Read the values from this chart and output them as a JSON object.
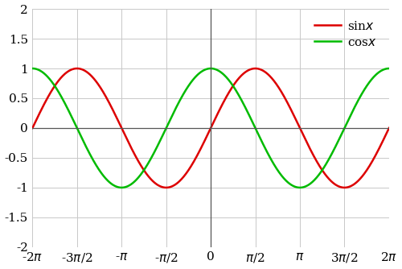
{
  "xlim": [
    -6.283185307179586,
    6.283185307179586
  ],
  "ylim": [
    -2.0,
    2.0
  ],
  "sin_color": "#dd0000",
  "cos_color": "#00bb00",
  "line_width": 1.8,
  "background_color": "#ffffff",
  "grid_color": "#c8c8c8",
  "zero_line_color": "#555555",
  "xtick_positions": [
    -6.283185307179586,
    -4.71238898038469,
    -3.141592653589793,
    -1.5707963267948966,
    0,
    1.5707963267948966,
    3.141592653589793,
    4.71238898038469,
    6.283185307179586
  ],
  "xtick_labels": [
    "-2$\\pi$",
    "-3$\\pi$/2",
    "-$\\pi$",
    "-$\\pi$/2",
    "0",
    "$\\pi$/2",
    "$\\pi$",
    "3$\\pi$/2",
    "2$\\pi$"
  ],
  "ytick_positions": [
    -2.0,
    -1.5,
    -1.0,
    -0.5,
    0.0,
    0.5,
    1.0,
    1.5,
    2.0
  ],
  "ytick_labels": [
    "-2",
    "-1.5",
    "-1",
    "-0.5",
    "0",
    "0.5",
    "1",
    "1.5",
    "2"
  ],
  "legend_sin": "sin$x$",
  "legend_cos": "cos$x$",
  "font_size": 11
}
